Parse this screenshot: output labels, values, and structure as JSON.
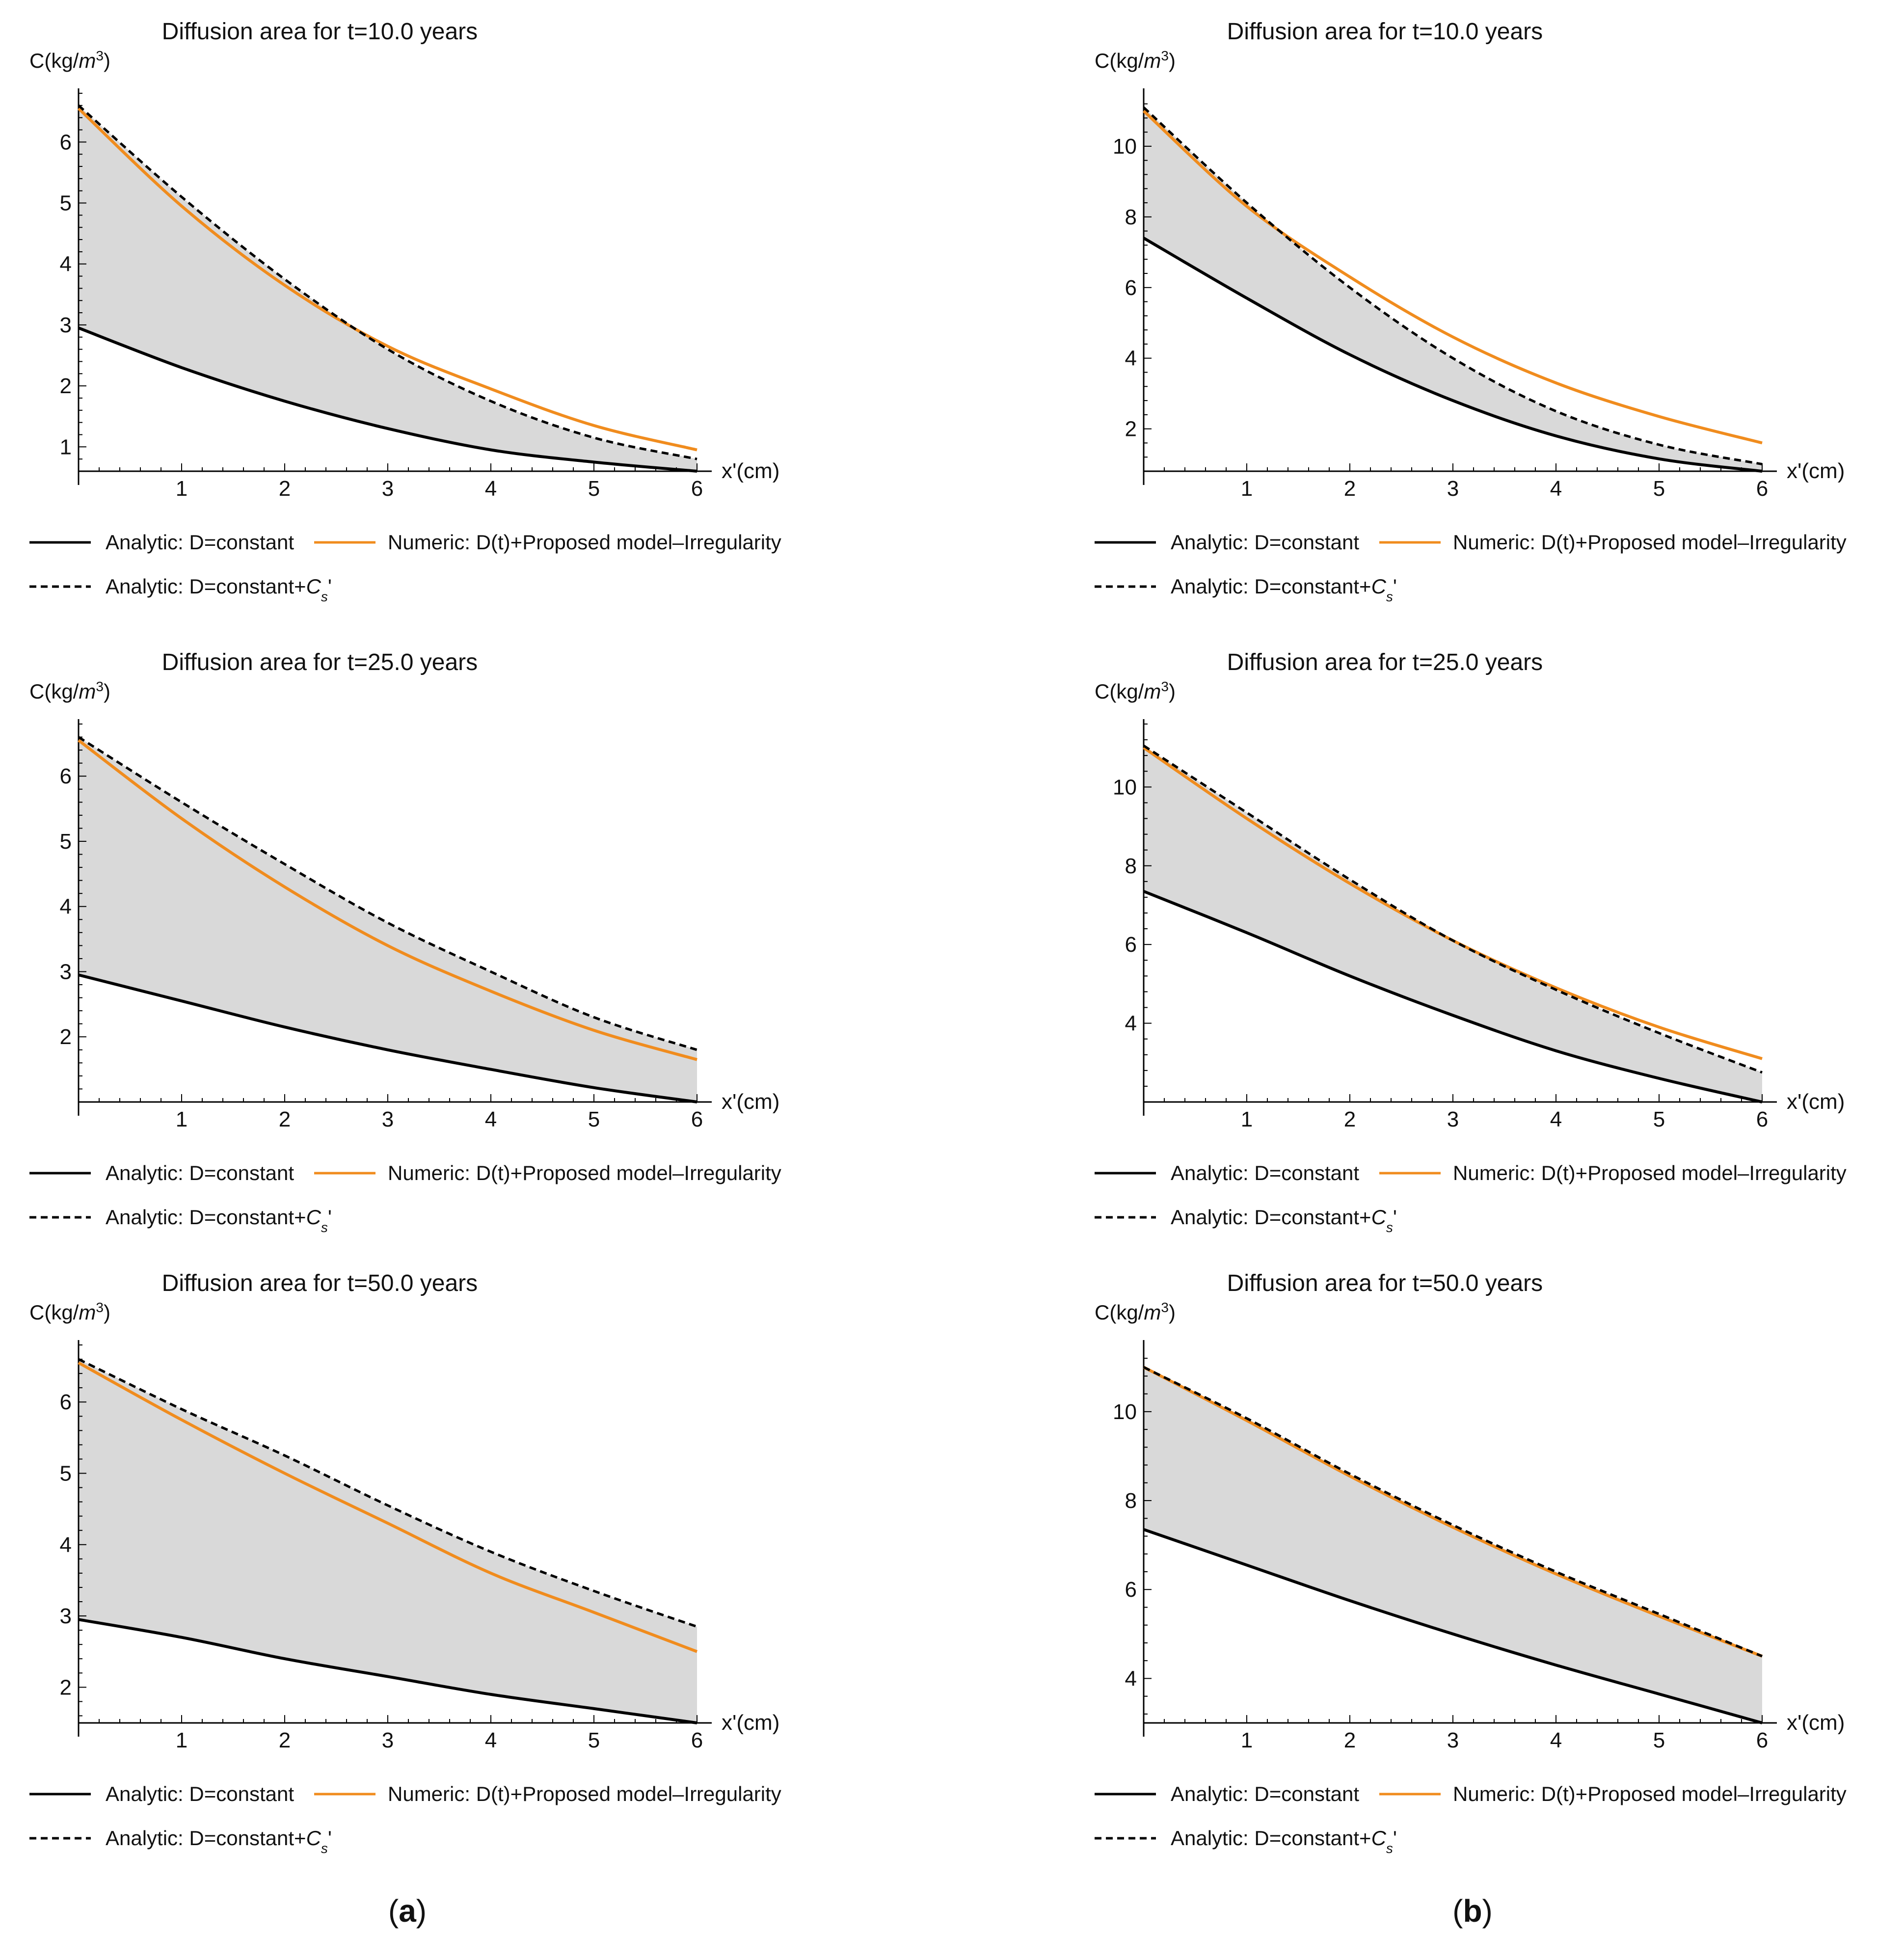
{
  "figure": {
    "column_labels": [
      {
        "letter": "a",
        "text": "(a)"
      },
      {
        "letter": "b",
        "text": "(b)"
      }
    ]
  },
  "legend": {
    "solid_black": "Analytic: D=constant",
    "orange": "Numeric: D(t)+Proposed model–Irregularity",
    "dashed_prefix": "Analytic: D=constant+",
    "dashed_sym": "C",
    "dashed_sub": "s",
    "dashed_suffix": "'"
  },
  "colors": {
    "analytic": "#000000",
    "numeric": "#f08c1e",
    "dashed": "#000000",
    "fill": "#d9d9d9",
    "axis": "#000000"
  },
  "chart_data": [
    {
      "type": "line",
      "panel": "a",
      "title": "Diffusion area for  t=10.0 years",
      "xlabel": "x'(cm)",
      "ylabel_prefix": "C(kg/",
      "ylabel_unit": "m",
      "ylabel_sup": "3",
      "ylabel_suffix": ")",
      "xlim": [
        0,
        6
      ],
      "ylim": [
        0.6,
        6.8
      ],
      "xticks": [
        1,
        2,
        3,
        4,
        5,
        6
      ],
      "yticks": [
        1,
        2,
        3,
        4,
        5,
        6
      ],
      "shaded_between": [
        "Analytic: D=constant",
        "Analytic: D=constant+Cs'"
      ],
      "series": [
        {
          "name": "Analytic: D=constant",
          "style": "solid-black",
          "x": [
            0,
            1,
            2,
            3,
            4,
            5,
            6
          ],
          "y": [
            2.95,
            2.3,
            1.75,
            1.3,
            0.95,
            0.75,
            0.6
          ]
        },
        {
          "name": "Numeric: D(t)+Proposed model–Irregularity",
          "style": "orange",
          "x": [
            0,
            1,
            2,
            3,
            4,
            5,
            6
          ],
          "y": [
            6.55,
            4.95,
            3.65,
            2.65,
            1.95,
            1.35,
            0.95
          ]
        },
        {
          "name": "Analytic: D=constant+Cs'",
          "style": "dashed-black",
          "x": [
            0,
            1,
            2,
            3,
            4,
            5,
            6
          ],
          "y": [
            6.6,
            5.1,
            3.75,
            2.6,
            1.75,
            1.15,
            0.8
          ]
        }
      ]
    },
    {
      "type": "line",
      "panel": "b",
      "title": "Diffusion area for  t=10.0 years",
      "xlabel": "x'(cm)",
      "ylabel_prefix": "C(kg/",
      "ylabel_unit": "m",
      "ylabel_sup": "3",
      "ylabel_suffix": ")",
      "xlim": [
        0,
        6
      ],
      "ylim": [
        0.8,
        11.5
      ],
      "xticks": [
        1,
        2,
        3,
        4,
        5,
        6
      ],
      "yticks": [
        2,
        4,
        6,
        8,
        10
      ],
      "shaded_between": [
        "Analytic: D=constant",
        "Analytic: D=constant+Cs'"
      ],
      "series": [
        {
          "name": "Analytic: D=constant",
          "style": "solid-black",
          "x": [
            0,
            1,
            2,
            3,
            4,
            5,
            6
          ],
          "y": [
            7.4,
            5.7,
            4.1,
            2.8,
            1.8,
            1.15,
            0.8
          ]
        },
        {
          "name": "Numeric: D(t)+Proposed model–Irregularity",
          "style": "orange",
          "x": [
            0,
            1,
            2,
            3,
            4,
            5,
            6
          ],
          "y": [
            11.0,
            8.3,
            6.3,
            4.6,
            3.3,
            2.35,
            1.6
          ]
        },
        {
          "name": "Analytic: D=constant+Cs'",
          "style": "dashed-black",
          "x": [
            0,
            1,
            2,
            3,
            4,
            5,
            6
          ],
          "y": [
            11.1,
            8.4,
            6.0,
            4.0,
            2.5,
            1.55,
            1.0
          ]
        }
      ]
    },
    {
      "type": "line",
      "panel": "a",
      "title": "Diffusion area for  t=25.0 years",
      "xlabel": "x'(cm)",
      "ylabel_prefix": "C(kg/",
      "ylabel_unit": "m",
      "ylabel_sup": "3",
      "ylabel_suffix": ")",
      "xlim": [
        0,
        6
      ],
      "ylim": [
        1.0,
        6.8
      ],
      "xticks": [
        1,
        2,
        3,
        4,
        5,
        6
      ],
      "yticks": [
        2,
        3,
        4,
        5,
        6
      ],
      "shaded_between": [
        "Analytic: D=constant",
        "Analytic: D=constant+Cs'"
      ],
      "series": [
        {
          "name": "Analytic: D=constant",
          "style": "solid-black",
          "x": [
            0,
            1,
            2,
            3,
            4,
            5,
            6
          ],
          "y": [
            2.95,
            2.55,
            2.15,
            1.8,
            1.5,
            1.22,
            1.0
          ]
        },
        {
          "name": "Numeric: D(t)+Proposed model–Irregularity",
          "style": "orange",
          "x": [
            0,
            1,
            2,
            3,
            4,
            5,
            6
          ],
          "y": [
            6.55,
            5.35,
            4.3,
            3.4,
            2.7,
            2.1,
            1.65
          ]
        },
        {
          "name": "Analytic: D=constant+Cs'",
          "style": "dashed-black",
          "x": [
            0,
            1,
            2,
            3,
            4,
            5,
            6
          ],
          "y": [
            6.6,
            5.6,
            4.65,
            3.75,
            3.0,
            2.3,
            1.8
          ]
        }
      ]
    },
    {
      "type": "line",
      "panel": "b",
      "title": "Diffusion area for  t=25.0 years",
      "xlabel": "x'(cm)",
      "ylabel_prefix": "C(kg/",
      "ylabel_unit": "m",
      "ylabel_sup": "3",
      "ylabel_suffix": ")",
      "xlim": [
        0,
        6
      ],
      "ylim": [
        2.0,
        11.6
      ],
      "xticks": [
        1,
        2,
        3,
        4,
        5,
        6
      ],
      "yticks": [
        4,
        6,
        8,
        10
      ],
      "shaded_between": [
        "Analytic: D=constant",
        "Analytic: D=constant+Cs'"
      ],
      "series": [
        {
          "name": "Analytic: D=constant",
          "style": "solid-black",
          "x": [
            0,
            1,
            2,
            3,
            4,
            5,
            6
          ],
          "y": [
            7.35,
            6.3,
            5.2,
            4.2,
            3.3,
            2.6,
            2.0
          ]
        },
        {
          "name": "Numeric: D(t)+Proposed model–Irregularity",
          "style": "orange",
          "x": [
            0,
            1,
            2,
            3,
            4,
            5,
            6
          ],
          "y": [
            11.0,
            9.2,
            7.55,
            6.1,
            4.9,
            3.9,
            3.1
          ]
        },
        {
          "name": "Analytic: D=constant+Cs'",
          "style": "dashed-black",
          "x": [
            0,
            1,
            2,
            3,
            4,
            5,
            6
          ],
          "y": [
            11.05,
            9.35,
            7.65,
            6.1,
            4.85,
            3.75,
            2.75
          ]
        }
      ]
    },
    {
      "type": "line",
      "panel": "a",
      "title": "Diffusion area for  t=50.0 years",
      "xlabel": "x'(cm)",
      "ylabel_prefix": "C(kg/",
      "ylabel_unit": "m",
      "ylabel_sup": "3",
      "ylabel_suffix": ")",
      "xlim": [
        0,
        6
      ],
      "ylim": [
        1.5,
        6.8
      ],
      "xticks": [
        1,
        2,
        3,
        4,
        5,
        6
      ],
      "yticks": [
        2,
        3,
        4,
        5,
        6
      ],
      "shaded_between": [
        "Analytic: D=constant",
        "Analytic: D=constant+Cs'"
      ],
      "series": [
        {
          "name": "Analytic: D=constant",
          "style": "solid-black",
          "x": [
            0,
            1,
            2,
            3,
            4,
            5,
            6
          ],
          "y": [
            2.95,
            2.7,
            2.4,
            2.15,
            1.9,
            1.7,
            1.5
          ]
        },
        {
          "name": "Numeric: D(t)+Proposed model–Irregularity",
          "style": "orange",
          "x": [
            0,
            1,
            2,
            3,
            4,
            5,
            6
          ],
          "y": [
            6.55,
            5.75,
            5.0,
            4.3,
            3.6,
            3.05,
            2.5
          ]
        },
        {
          "name": "Analytic: D=constant+Cs'",
          "style": "dashed-black",
          "x": [
            0,
            1,
            2,
            3,
            4,
            5,
            6
          ],
          "y": [
            6.6,
            5.9,
            5.25,
            4.55,
            3.9,
            3.35,
            2.85
          ]
        }
      ]
    },
    {
      "type": "line",
      "panel": "b",
      "title": "Diffusion area for  t=50.0 years",
      "xlabel": "x'(cm)",
      "ylabel_prefix": "C(kg/",
      "ylabel_unit": "m",
      "ylabel_sup": "3",
      "ylabel_suffix": ")",
      "xlim": [
        0,
        6
      ],
      "ylim": [
        3.0,
        11.5
      ],
      "xticks": [
        1,
        2,
        3,
        4,
        5,
        6
      ],
      "yticks": [
        4,
        6,
        8,
        10
      ],
      "shaded_between": [
        "Analytic: D=constant",
        "Analytic: D=constant+Cs'"
      ],
      "series": [
        {
          "name": "Analytic: D=constant",
          "style": "solid-black",
          "x": [
            0,
            1,
            2,
            3,
            4,
            5,
            6
          ],
          "y": [
            7.35,
            6.55,
            5.75,
            5.0,
            4.3,
            3.65,
            3.0
          ]
        },
        {
          "name": "Numeric: D(t)+Proposed model–Irregularity",
          "style": "orange",
          "x": [
            0,
            1,
            2,
            3,
            4,
            5,
            6
          ],
          "y": [
            11.0,
            9.8,
            8.55,
            7.4,
            6.35,
            5.4,
            4.5
          ]
        },
        {
          "name": "Analytic: D=constant+Cs'",
          "style": "dashed-black",
          "x": [
            0,
            1,
            2,
            3,
            4,
            5,
            6
          ],
          "y": [
            11.0,
            9.85,
            8.6,
            7.45,
            6.4,
            5.45,
            4.5
          ]
        }
      ]
    }
  ]
}
